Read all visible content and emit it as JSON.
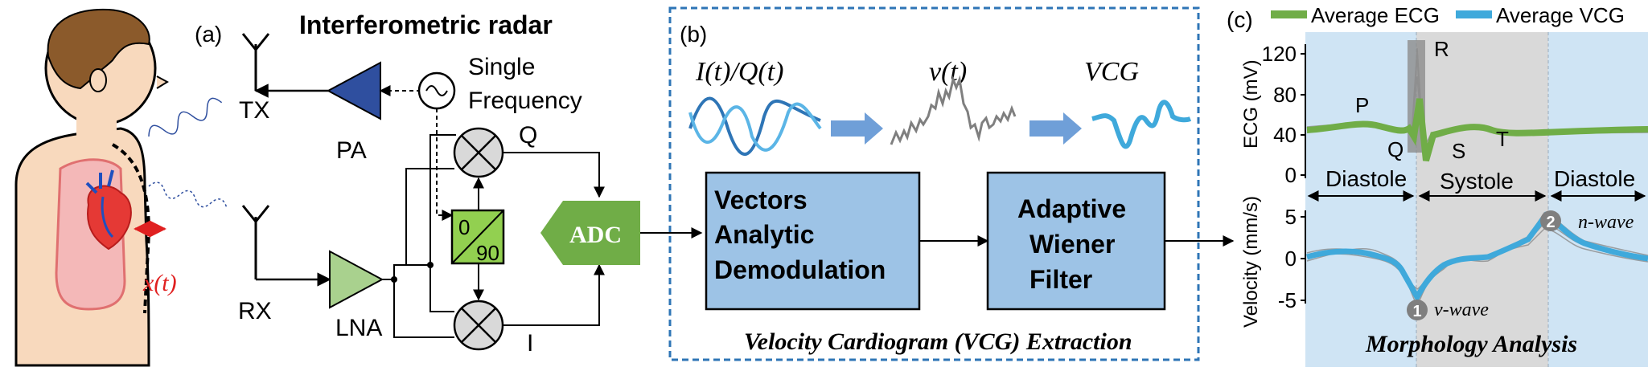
{
  "panel_a": {
    "label": "(a)",
    "title": "Interferometric radar",
    "tx": "TX",
    "rx": "RX",
    "pa": "PA",
    "lna": "LNA",
    "osc_line1": "Single",
    "osc_line2": "Frequency",
    "q": "Q",
    "i": "I",
    "adc": "ADC",
    "phase_top": "0",
    "phase_bottom": "90",
    "x_of_t": "x(t)"
  },
  "panel_b": {
    "label": "(b)",
    "iq": "I(t)/Q(t)",
    "vt": "v(t)",
    "vcg": "VCG",
    "box1_line1": "Vectors",
    "box1_line2": "Analytic",
    "box1_line3": "Demodulation",
    "box2_line1": "Adaptive",
    "box2_line2": "Wiener",
    "box2_line3": "Filter",
    "caption": "Velocity Cardiogram (VCG) Extraction"
  },
  "panel_c": {
    "label": "(c)",
    "legend": [
      "Average ECG",
      "Average VCG"
    ],
    "ecg_ylabel": "ECG (mV)",
    "ecg_ticks": [
      "120",
      "80",
      "40",
      "0"
    ],
    "vel_ylabel": "Velocity (mm/s)",
    "vel_ticks": [
      "5",
      "0",
      "-5"
    ],
    "phases": [
      "Diastole",
      "Systole",
      "Diastole"
    ],
    "ecg_waves": [
      "P",
      "Q",
      "R",
      "S",
      "T"
    ],
    "marker1": "1",
    "marker2": "2",
    "v_wave": "v-wave",
    "n_wave": "n-wave",
    "caption": "Morphology Analysis"
  },
  "colors": {
    "pa_blue": "#2f4f9f",
    "lna_green": "#a9d18e",
    "adc_green": "#70ad47",
    "phase_green": "#92d050",
    "box_blue": "#9dc3e6",
    "ecg_green": "#70ad47",
    "vcg_blue": "#3fa9db",
    "bg_diastole": "#cfe4f4",
    "bg_systole": "#d9d9d9"
  }
}
